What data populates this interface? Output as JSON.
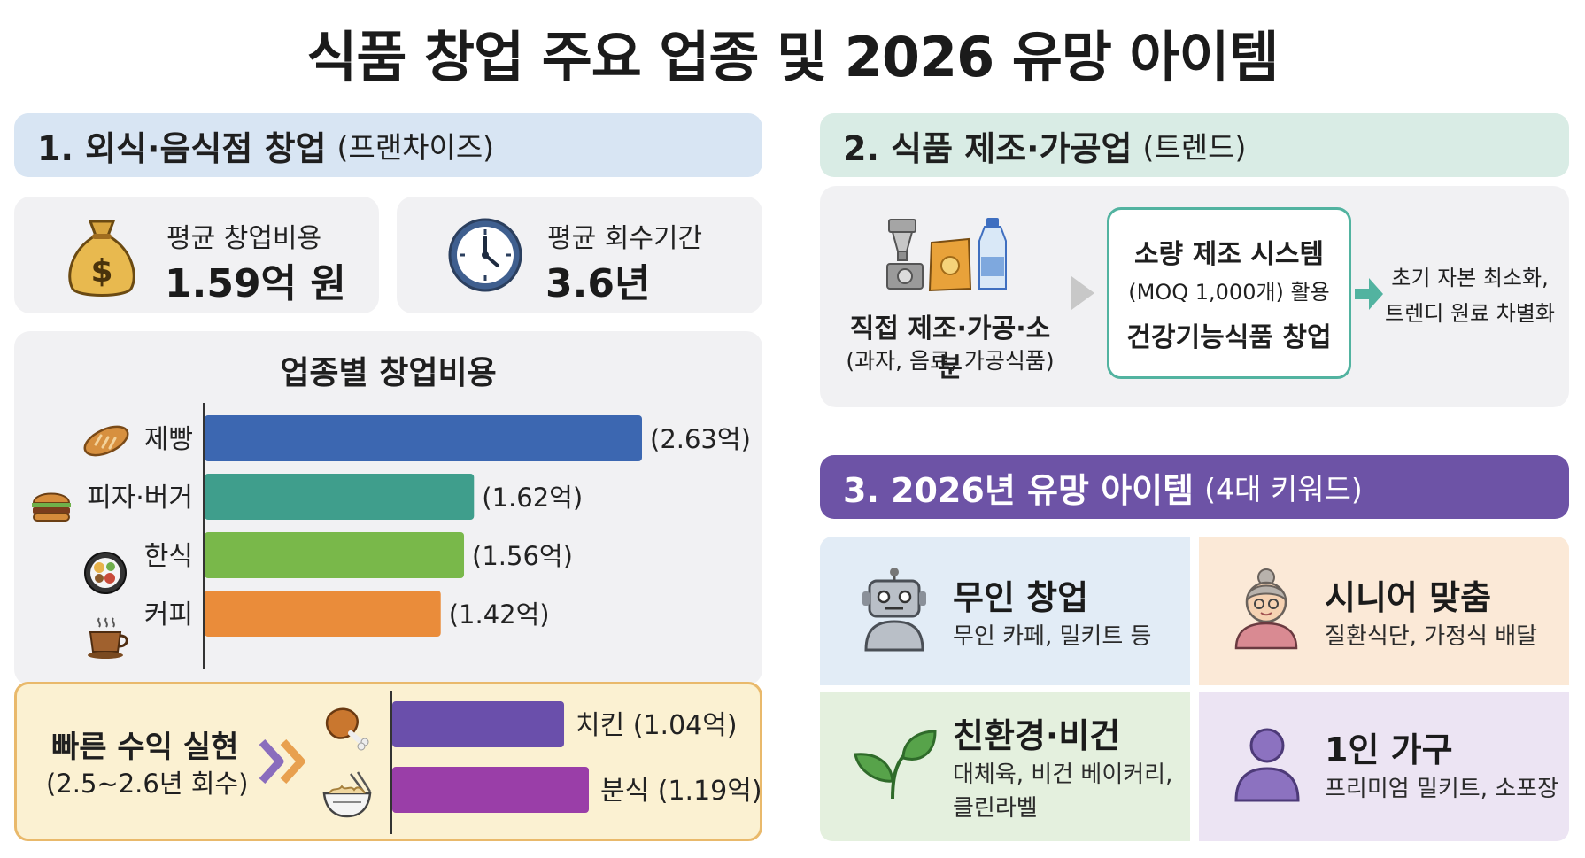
{
  "title": "식품 창업 주요 업종 및 2026 유망 아이템",
  "section1": {
    "heading": "1. 외식·음식점 창업",
    "heading_sub": "(프랜차이즈)",
    "stat_cost": {
      "label": "평균 창업비용",
      "value": "1.59억 원",
      "icon": "money-bag-icon"
    },
    "stat_payback": {
      "label": "평균 회수기간",
      "value": "3.6년",
      "icon": "clock-icon"
    },
    "fast": {
      "line1": "빠른 수익 실현",
      "line2": "(2.5~2.6년 회수)"
    }
  },
  "chart_data": [
    {
      "type": "bar",
      "orientation": "horizontal",
      "title": "업종별 창업비용",
      "unit": "억",
      "categories": [
        "제빵",
        "피자·버거",
        "한식",
        "커피"
      ],
      "values": [
        2.63,
        1.62,
        1.56,
        1.42
      ],
      "value_labels": [
        "(2.63억)",
        "(1.62억)",
        "(1.56억)",
        "(1.42억)"
      ],
      "colors": [
        "#3c67b1",
        "#3f9e8c",
        "#79b84a",
        "#ea8c3a"
      ],
      "icons": [
        "bread-icon",
        "burger-icon",
        "bibimbap-icon",
        "coffee-cup-icon"
      ],
      "xlim": [
        0,
        2.63
      ]
    },
    {
      "type": "bar",
      "orientation": "horizontal",
      "title": "빠른 수익 실현",
      "unit": "억",
      "categories": [
        "치킨",
        "분식"
      ],
      "values": [
        1.04,
        1.19
      ],
      "value_labels": [
        "치킨 (1.04억)",
        "분식 (1.19억)"
      ],
      "colors": [
        "#6a4fab",
        "#9a3ea8"
      ],
      "icons": [
        "chicken-leg-icon",
        "noodle-bowl-icon"
      ],
      "xlim": [
        0,
        1.19
      ]
    }
  ],
  "section2": {
    "heading": "2. 식품 제조·가공업",
    "heading_sub": "(트렌드)",
    "left_line1": "직접 제조·가공·소분",
    "left_line2": "(과자, 음료, 가공식품)",
    "box_line1": "소량 제조 시스템",
    "box_line2": "(MOQ 1,000개) 활용",
    "box_line3": "건강기능식품 창업",
    "right_line1": "초기 자본 최소화,",
    "right_line2": "트렌디 원료 차별화"
  },
  "section3": {
    "heading": "3. 2026년 유망 아이템",
    "heading_sub": "(4대 키워드)",
    "items": [
      {
        "title": "무인 창업",
        "desc1": "무인 카페, 밀키트 등",
        "desc2": "",
        "icon": "robot-icon",
        "bg": "#e2ecf6"
      },
      {
        "title": "시니어 맞춤",
        "desc1": "질환식단, 가정식 배달",
        "desc2": "",
        "icon": "grandmother-icon",
        "bg": "#fbe9d7"
      },
      {
        "title": "친환경·비건",
        "desc1": "대체육, 비건 베이커리,",
        "desc2": "클린라벨",
        "icon": "leaf-icon",
        "bg": "#e4f0de"
      },
      {
        "title": "1인 가구",
        "desc1": "프리미엄 밀키트, 소포장",
        "desc2": "",
        "icon": "person-icon",
        "bg": "#ece4f3"
      }
    ]
  },
  "colors": {
    "sec1_head": "#d8e5f3",
    "sec2_head": "#d9ece5",
    "sec3_head": "#6d53a6",
    "fast_bg": "#fbf1d2",
    "fast_border": "#e9b96b",
    "teal": "#52b3a0"
  }
}
